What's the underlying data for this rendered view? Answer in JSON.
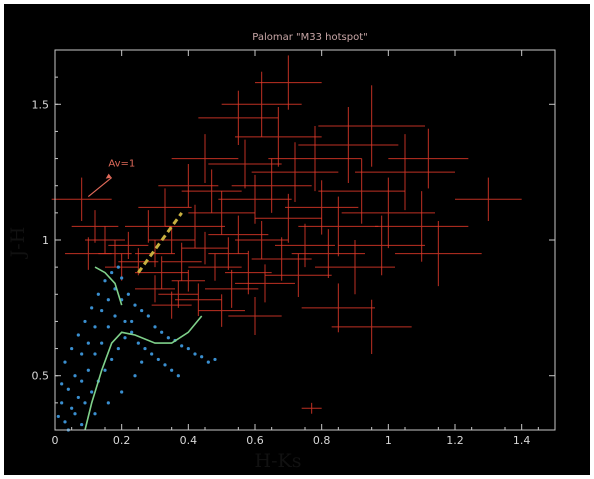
{
  "chart_data": {
    "type": "scatter",
    "title": "Palomar \"M33 hotspot\"",
    "xlabel": "H-Ks",
    "ylabel": "J-H",
    "xlim": [
      0,
      1.5
    ],
    "ylim": [
      0.3,
      1.7
    ],
    "x_ticks": [
      "0",
      "0.2",
      "0.4",
      "0.6",
      "0.8",
      "1",
      "1.2",
      "1.4"
    ],
    "y_ticks": [
      "0.5",
      "1",
      "1.5"
    ],
    "grid": false,
    "legend": "none",
    "annotation": {
      "text": "Av=1",
      "x": 0.16,
      "y": 1.27,
      "arrow_from": [
        0.1,
        1.16
      ],
      "arrow_to": [
        0.17,
        1.23
      ]
    },
    "colors": {
      "figure_background": "#000000",
      "outer_background": "#ffffff",
      "axes": "#c8c8c8",
      "red_points": "#e03a2a",
      "blue_points": "#3a8fd0",
      "green_track": "#7fd08a",
      "dashed_vector": "#c8b040",
      "annotation": "#e06a5a"
    },
    "series": [
      {
        "kind": "error-bar-cloud",
        "color": "red",
        "points": [
          {
            "x": 0.3,
            "y": 0.95,
            "xerr": 0.06,
            "yerr": 0.05
          },
          {
            "x": 0.32,
            "y": 0.88,
            "xerr": 0.08,
            "yerr": 0.06
          },
          {
            "x": 0.35,
            "y": 1.0,
            "xerr": 0.07,
            "yerr": 0.05
          },
          {
            "x": 0.38,
            "y": 0.92,
            "xerr": 0.06,
            "yerr": 0.07
          },
          {
            "x": 0.4,
            "y": 0.85,
            "xerr": 0.05,
            "yerr": 0.04
          },
          {
            "x": 0.42,
            "y": 1.05,
            "xerr": 0.09,
            "yerr": 0.08
          },
          {
            "x": 0.45,
            "y": 0.97,
            "xerr": 0.07,
            "yerr": 0.06
          },
          {
            "x": 0.48,
            "y": 0.9,
            "xerr": 0.08,
            "yerr": 0.05
          },
          {
            "x": 0.5,
            "y": 1.1,
            "xerr": 0.1,
            "yerr": 0.08
          },
          {
            "x": 0.52,
            "y": 0.95,
            "xerr": 0.06,
            "yerr": 0.06
          },
          {
            "x": 0.55,
            "y": 1.02,
            "xerr": 0.09,
            "yerr": 0.07
          },
          {
            "x": 0.58,
            "y": 0.88,
            "xerr": 0.07,
            "yerr": 0.08
          },
          {
            "x": 0.6,
            "y": 1.15,
            "xerr": 0.11,
            "yerr": 0.09
          },
          {
            "x": 0.62,
            "y": 1.0,
            "xerr": 0.08,
            "yerr": 0.07
          },
          {
            "x": 0.65,
            "y": 1.2,
            "xerr": 0.12,
            "yerr": 0.1
          },
          {
            "x": 0.68,
            "y": 0.93,
            "xerr": 0.09,
            "yerr": 0.08
          },
          {
            "x": 0.7,
            "y": 1.08,
            "xerr": 0.1,
            "yerr": 0.09
          },
          {
            "x": 0.72,
            "y": 1.25,
            "xerr": 0.13,
            "yerr": 0.11
          },
          {
            "x": 0.75,
            "y": 0.98,
            "xerr": 0.09,
            "yerr": 0.08
          },
          {
            "x": 0.78,
            "y": 1.3,
            "xerr": 0.14,
            "yerr": 0.12
          },
          {
            "x": 0.8,
            "y": 1.12,
            "xerr": 0.11,
            "yerr": 0.1
          },
          {
            "x": 0.85,
            "y": 1.05,
            "xerr": 0.12,
            "yerr": 0.11
          },
          {
            "x": 0.88,
            "y": 1.35,
            "xerr": 0.15,
            "yerr": 0.14
          },
          {
            "x": 0.92,
            "y": 1.18,
            "xerr": 0.13,
            "yerr": 0.12
          },
          {
            "x": 0.95,
            "y": 1.42,
            "xerr": 0.16,
            "yerr": 0.15
          },
          {
            "x": 1.0,
            "y": 1.1,
            "xerr": 0.14,
            "yerr": 0.13
          },
          {
            "x": 1.05,
            "y": 1.25,
            "xerr": 0.15,
            "yerr": 0.14
          },
          {
            "x": 0.28,
            "y": 1.05,
            "xerr": 0.07,
            "yerr": 0.06
          },
          {
            "x": 0.25,
            "y": 0.92,
            "xerr": 0.06,
            "yerr": 0.05
          },
          {
            "x": 0.22,
            "y": 0.98,
            "xerr": 0.06,
            "yerr": 0.05
          },
          {
            "x": 0.33,
            "y": 1.12,
            "xerr": 0.08,
            "yerr": 0.07
          },
          {
            "x": 0.37,
            "y": 0.8,
            "xerr": 0.06,
            "yerr": 0.05
          },
          {
            "x": 0.43,
            "y": 0.78,
            "xerr": 0.07,
            "yerr": 0.06
          },
          {
            "x": 0.47,
            "y": 1.18,
            "xerr": 0.09,
            "yerr": 0.08
          },
          {
            "x": 0.53,
            "y": 0.82,
            "xerr": 0.08,
            "yerr": 0.07
          },
          {
            "x": 0.57,
            "y": 1.28,
            "xerr": 0.11,
            "yerr": 0.09
          },
          {
            "x": 0.63,
            "y": 0.84,
            "xerr": 0.09,
            "yerr": 0.07
          },
          {
            "x": 0.67,
            "y": 1.38,
            "xerr": 0.13,
            "yerr": 0.11
          },
          {
            "x": 0.73,
            "y": 0.87,
            "xerr": 0.1,
            "yerr": 0.08
          },
          {
            "x": 0.82,
            "y": 0.95,
            "xerr": 0.11,
            "yerr": 0.09
          },
          {
            "x": 0.9,
            "y": 0.9,
            "xerr": 0.12,
            "yerr": 0.1
          },
          {
            "x": 0.98,
            "y": 0.98,
            "xerr": 0.13,
            "yerr": 0.11
          },
          {
            "x": 0.2,
            "y": 0.9,
            "xerr": 0.05,
            "yerr": 0.05
          },
          {
            "x": 0.18,
            "y": 0.95,
            "xerr": 0.05,
            "yerr": 0.05
          },
          {
            "x": 0.15,
            "y": 1.0,
            "xerr": 0.06,
            "yerr": 0.05
          },
          {
            "x": 0.12,
            "y": 1.05,
            "xerr": 0.07,
            "yerr": 0.06
          },
          {
            "x": 0.08,
            "y": 1.15,
            "xerr": 0.09,
            "yerr": 0.08
          },
          {
            "x": 0.1,
            "y": 0.95,
            "xerr": 0.07,
            "yerr": 0.06
          },
          {
            "x": 0.45,
            "y": 1.3,
            "xerr": 0.1,
            "yerr": 0.09
          },
          {
            "x": 0.55,
            "y": 1.45,
            "xerr": 0.12,
            "yerr": 0.1
          },
          {
            "x": 0.62,
            "y": 1.5,
            "xerr": 0.12,
            "yerr": 0.12
          },
          {
            "x": 0.7,
            "y": 1.58,
            "xerr": 0.1,
            "yerr": 0.1
          },
          {
            "x": 0.4,
            "y": 1.2,
            "xerr": 0.09,
            "yerr": 0.08
          },
          {
            "x": 0.35,
            "y": 0.76,
            "xerr": 0.06,
            "yerr": 0.05
          },
          {
            "x": 1.1,
            "y": 1.05,
            "xerr": 0.14,
            "yerr": 0.13
          },
          {
            "x": 1.15,
            "y": 0.95,
            "xerr": 0.13,
            "yerr": 0.12
          },
          {
            "x": 1.12,
            "y": 1.3,
            "xerr": 0.12,
            "yerr": 0.11
          },
          {
            "x": 1.3,
            "y": 1.15,
            "xerr": 0.1,
            "yerr": 0.08
          },
          {
            "x": 0.77,
            "y": 0.38,
            "xerr": 0.03,
            "yerr": 0.02
          },
          {
            "x": 0.95,
            "y": 0.68,
            "xerr": 0.12,
            "yerr": 0.1
          },
          {
            "x": 0.85,
            "y": 0.75,
            "xerr": 0.11,
            "yerr": 0.09
          },
          {
            "x": 0.6,
            "y": 0.72,
            "xerr": 0.08,
            "yerr": 0.07
          },
          {
            "x": 0.5,
            "y": 0.74,
            "xerr": 0.07,
            "yerr": 0.06
          },
          {
            "x": 0.3,
            "y": 0.82,
            "xerr": 0.06,
            "yerr": 0.05
          }
        ]
      },
      {
        "kind": "dots",
        "color": "blue",
        "points": [
          [
            0.02,
            0.4
          ],
          [
            0.04,
            0.45
          ],
          [
            0.06,
            0.5
          ],
          [
            0.03,
            0.55
          ],
          [
            0.08,
            0.48
          ],
          [
            0.1,
            0.52
          ],
          [
            0.05,
            0.6
          ],
          [
            0.12,
            0.58
          ],
          [
            0.07,
            0.65
          ],
          [
            0.14,
            0.62
          ],
          [
            0.09,
            0.7
          ],
          [
            0.16,
            0.68
          ],
          [
            0.11,
            0.75
          ],
          [
            0.18,
            0.72
          ],
          [
            0.13,
            0.8
          ],
          [
            0.2,
            0.78
          ],
          [
            0.15,
            0.85
          ],
          [
            0.22,
            0.8
          ],
          [
            0.17,
            0.88
          ],
          [
            0.24,
            0.76
          ],
          [
            0.19,
            0.9
          ],
          [
            0.26,
            0.74
          ],
          [
            0.21,
            0.7
          ],
          [
            0.28,
            0.72
          ],
          [
            0.23,
            0.66
          ],
          [
            0.3,
            0.68
          ],
          [
            0.25,
            0.62
          ],
          [
            0.32,
            0.66
          ],
          [
            0.27,
            0.6
          ],
          [
            0.34,
            0.64
          ],
          [
            0.29,
            0.58
          ],
          [
            0.36,
            0.63
          ],
          [
            0.31,
            0.56
          ],
          [
            0.38,
            0.61
          ],
          [
            0.33,
            0.54
          ],
          [
            0.4,
            0.6
          ],
          [
            0.35,
            0.52
          ],
          [
            0.42,
            0.58
          ],
          [
            0.37,
            0.5
          ],
          [
            0.44,
            0.57
          ],
          [
            0.01,
            0.35
          ],
          [
            0.03,
            0.33
          ],
          [
            0.05,
            0.38
          ],
          [
            0.07,
            0.42
          ],
          [
            0.02,
            0.47
          ],
          [
            0.06,
            0.36
          ],
          [
            0.09,
            0.4
          ],
          [
            0.11,
            0.44
          ],
          [
            0.13,
            0.48
          ],
          [
            0.15,
            0.52
          ],
          [
            0.17,
            0.56
          ],
          [
            0.19,
            0.6
          ],
          [
            0.21,
            0.64
          ],
          [
            0.23,
            0.7
          ],
          [
            0.08,
            0.58
          ],
          [
            0.1,
            0.62
          ],
          [
            0.12,
            0.68
          ],
          [
            0.14,
            0.74
          ],
          [
            0.16,
            0.78
          ],
          [
            0.18,
            0.82
          ],
          [
            0.2,
            0.86
          ],
          [
            0.46,
            0.55
          ],
          [
            0.48,
            0.56
          ],
          [
            0.04,
            0.3
          ],
          [
            0.08,
            0.32
          ],
          [
            0.12,
            0.36
          ],
          [
            0.16,
            0.4
          ],
          [
            0.2,
            0.44
          ],
          [
            0.24,
            0.5
          ],
          [
            0.26,
            0.55
          ]
        ]
      },
      {
        "kind": "line",
        "color": "green",
        "points": [
          [
            0.09,
            0.3
          ],
          [
            0.11,
            0.4
          ],
          [
            0.14,
            0.52
          ],
          [
            0.17,
            0.62
          ],
          [
            0.2,
            0.66
          ],
          [
            0.24,
            0.65
          ],
          [
            0.3,
            0.62
          ],
          [
            0.35,
            0.62
          ],
          [
            0.4,
            0.66
          ],
          [
            0.44,
            0.72
          ]
        ]
      },
      {
        "kind": "line",
        "color": "green",
        "points": [
          [
            0.2,
            0.76
          ],
          [
            0.18,
            0.84
          ],
          [
            0.15,
            0.88
          ],
          [
            0.12,
            0.9
          ]
        ]
      },
      {
        "kind": "dashed-line",
        "color": "yellow",
        "points": [
          [
            0.25,
            0.88
          ],
          [
            0.38,
            1.1
          ]
        ]
      }
    ]
  }
}
